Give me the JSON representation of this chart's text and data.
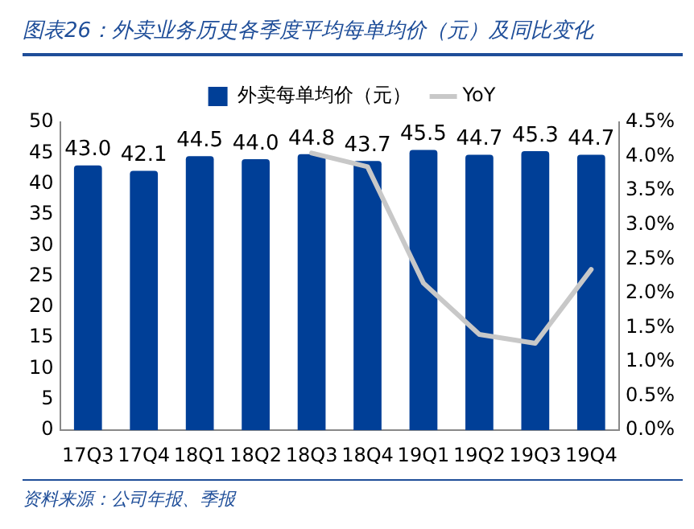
{
  "chart_data": {
    "type": "bar",
    "title": "图表26：外卖业务历史各季度平均每单均价（元）及同比变化",
    "categories": [
      "17Q3",
      "17Q4",
      "18Q1",
      "18Q2",
      "18Q3",
      "18Q4",
      "19Q1",
      "19Q2",
      "19Q3",
      "19Q4"
    ],
    "series": [
      {
        "name": "外卖每单均价（元）",
        "color": "#003f97",
        "values": [
          43.0,
          42.1,
          44.5,
          44.0,
          44.8,
          43.7,
          45.5,
          44.7,
          45.3,
          44.7
        ],
        "value_labels": [
          "43.0",
          "42.1",
          "44.5",
          "44.0",
          "44.8",
          "43.7",
          "45.5",
          "44.7",
          "45.3",
          "44.7"
        ]
      },
      {
        "name": "YoY",
        "type": "line",
        "axis": "y2",
        "color": "#c8c8c8",
        "values": [
          null,
          null,
          null,
          null,
          4.05,
          3.85,
          2.15,
          1.4,
          1.27,
          2.35
        ]
      }
    ],
    "ylim": [
      0,
      50
    ],
    "yticks": [
      0,
      5,
      10,
      15,
      20,
      25,
      30,
      35,
      40,
      45,
      50
    ],
    "y2lim": [
      0,
      4.5
    ],
    "y2ticks": [
      {
        "value": 0,
        "label": "0.0%"
      },
      {
        "value": 0.5,
        "label": "0.5%"
      },
      {
        "value": 1,
        "label": "1.0%"
      },
      {
        "value": 1.5,
        "label": "1.5%"
      },
      {
        "value": 2,
        "label": "2.0%"
      },
      {
        "value": 2.5,
        "label": "2.5%"
      },
      {
        "value": 3,
        "label": "3.0%"
      },
      {
        "value": 3.5,
        "label": "3.5%"
      },
      {
        "value": 4,
        "label": "4.0%"
      },
      {
        "value": 4.5,
        "label": "4.5%"
      }
    ],
    "grid": false,
    "legend": "top",
    "marker": "none",
    "annotations": [
      "资料来源：公司年报、季报"
    ]
  }
}
